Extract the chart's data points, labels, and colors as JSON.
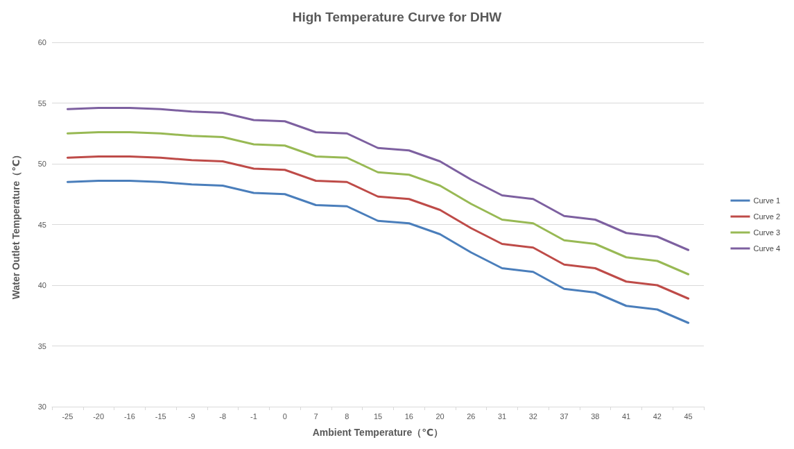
{
  "chart_data": {
    "type": "line",
    "title": "High Temperature Curve for DHW",
    "xlabel": "Ambient Temperature（℃）",
    "ylabel": "Water Outlet Temperature（℃）",
    "categories": [
      "-25",
      "-20",
      "-16",
      "-15",
      "-9",
      "-8",
      "-1",
      "0",
      "7",
      "8",
      "15",
      "16",
      "20",
      "26",
      "31",
      "32",
      "37",
      "38",
      "41",
      "42",
      "45"
    ],
    "series": [
      {
        "name": "Curve 1",
        "color": "#4a7ebb",
        "values": [
          48.5,
          48.6,
          48.6,
          48.5,
          48.3,
          48.2,
          47.6,
          47.5,
          46.6,
          46.5,
          45.3,
          45.1,
          44.2,
          42.7,
          41.4,
          41.1,
          39.7,
          39.4,
          38.3,
          38.0,
          36.9
        ]
      },
      {
        "name": "Curve 2",
        "color": "#be4b48",
        "values": [
          50.5,
          50.6,
          50.6,
          50.5,
          50.3,
          50.2,
          49.6,
          49.5,
          48.6,
          48.5,
          47.3,
          47.1,
          46.2,
          44.7,
          43.4,
          43.1,
          41.7,
          41.4,
          40.3,
          40.0,
          38.9
        ]
      },
      {
        "name": "Curve 3",
        "color": "#98b954",
        "values": [
          52.5,
          52.6,
          52.6,
          52.5,
          52.3,
          52.2,
          51.6,
          51.5,
          50.6,
          50.5,
          49.3,
          49.1,
          48.2,
          46.7,
          45.4,
          45.1,
          43.7,
          43.4,
          42.3,
          42.0,
          40.9
        ]
      },
      {
        "name": "Curve 4",
        "color": "#7d60a0",
        "values": [
          54.5,
          54.6,
          54.6,
          54.5,
          54.3,
          54.2,
          53.6,
          53.5,
          52.6,
          52.5,
          51.3,
          51.1,
          50.2,
          48.7,
          47.4,
          47.1,
          45.7,
          45.4,
          44.3,
          44.0,
          42.9
        ]
      }
    ],
    "ylim": [
      30,
      60
    ],
    "yticks": [
      30,
      35,
      40,
      45,
      50,
      55,
      60
    ],
    "grid": "y",
    "legend": "right",
    "marker": "none",
    "line_style": "solid"
  }
}
